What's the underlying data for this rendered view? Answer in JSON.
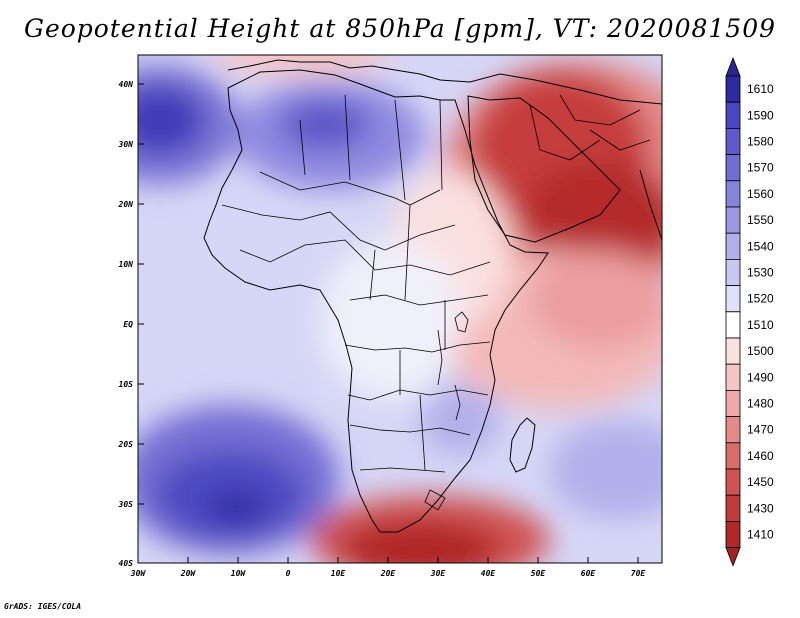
{
  "title": "Geopotential Height at 850hPa [gpm], VT: 2020081509",
  "credit": "GrADS: IGES/COLA",
  "lat_labels": [
    "40N",
    "30N",
    "20N",
    "10N",
    "EQ",
    "10S",
    "20S",
    "30S",
    "40S"
  ],
  "lon_labels": [
    "30W",
    "20W",
    "10W",
    "0",
    "10E",
    "20E",
    "30E",
    "40E",
    "50E",
    "60E",
    "70E"
  ],
  "colorbar": {
    "labels": [
      "1610",
      "1590",
      "1580",
      "1570",
      "1560",
      "1550",
      "1540",
      "1530",
      "1520",
      "1510",
      "1500",
      "1490",
      "1480",
      "1470",
      "1460",
      "1450",
      "1430",
      "1410"
    ],
    "colors": [
      "#2e2aa0",
      "#4a45c0",
      "#5f5acb",
      "#716dd3",
      "#8783da",
      "#9c99e2",
      "#b2b0ea",
      "#c9c8f2",
      "#e0e0f8",
      "#ffffff",
      "#fbe0e0",
      "#f5c4c4",
      "#eda8a8",
      "#e48a8a",
      "#db6c6c",
      "#d05252",
      "#c23b3b",
      "#b02828"
    ],
    "top_arrow_color": "#2a2690",
    "bottom_arrow_color": "#a52020"
  }
}
